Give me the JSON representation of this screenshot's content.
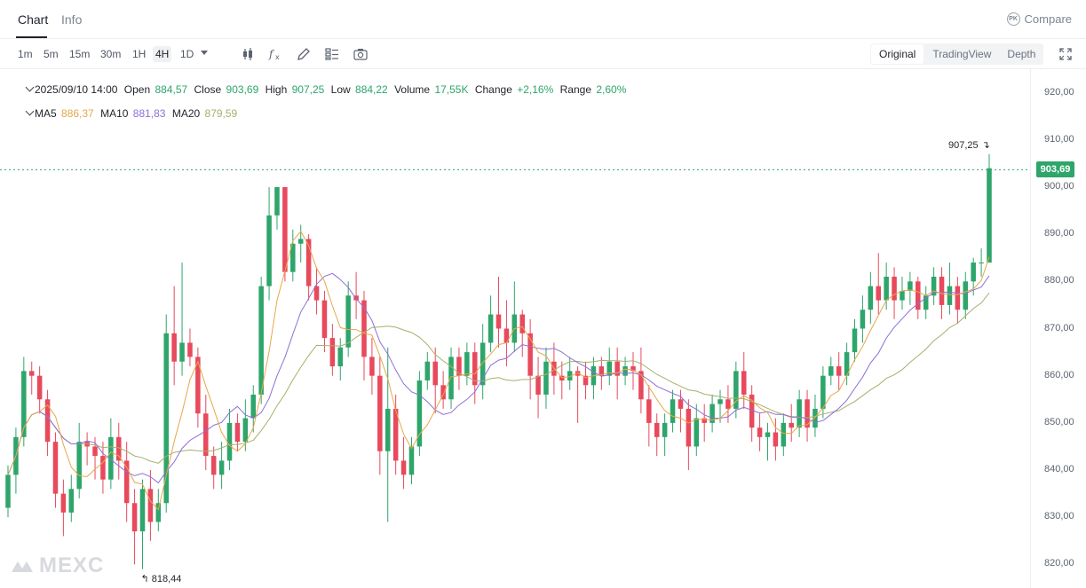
{
  "tabs": {
    "chart": "Chart",
    "info": "Info",
    "compare": "Compare",
    "compare_badge": "PK"
  },
  "intervals": [
    "1m",
    "5m",
    "15m",
    "30m",
    "1H",
    "4H",
    "1D"
  ],
  "active_interval": "4H",
  "tools": [
    "candlestick-type-icon",
    "indicators-fx-icon",
    "draw-pencil-icon",
    "layout-grid-icon",
    "screenshot-camera-icon"
  ],
  "view_modes": [
    "Original",
    "TradingView",
    "Depth"
  ],
  "active_view": "Original",
  "ohlc": {
    "date": "2025/09/10 14:00",
    "open_label": "Open",
    "open": "884,57",
    "close_label": "Close",
    "close": "903,69",
    "high_label": "High",
    "high": "907,25",
    "low_label": "Low",
    "low": "884,22",
    "volume_label": "Volume",
    "volume": "17,55K",
    "change_label": "Change",
    "change": "+2,16%",
    "range_label": "Range",
    "range": "2,60%"
  },
  "ma": {
    "ma5_label": "MA5",
    "ma5": "886,37",
    "ma10_label": "MA10",
    "ma10": "881,83",
    "ma20_label": "MA20",
    "ma20": "879,59"
  },
  "price_ticks": [
    "920,00",
    "910,00",
    "900,00",
    "890,00",
    "880,00",
    "870,00",
    "860,00",
    "850,00",
    "840,00",
    "830,00",
    "820,00"
  ],
  "last_price": "903,69",
  "high_marker": "907,25",
  "low_marker": "818,44",
  "watermark": "MEXC",
  "colors": {
    "up": "#2ea56b",
    "down": "#e8495c",
    "ma5": "#e7a74a",
    "ma10": "#8e6fd6",
    "ma20": "#a7b06a",
    "last_line": "#2ea56b"
  },
  "chart_data": {
    "type": "candlestick",
    "y_range": [
      815,
      925
    ],
    "y_ticks": [
      820,
      830,
      840,
      850,
      860,
      870,
      880,
      890,
      900,
      910,
      920
    ],
    "grid": false,
    "last_price": 903.69,
    "candles": [
      [
        832,
        839,
        830,
        841
      ],
      [
        839,
        847,
        835,
        849
      ],
      [
        847,
        861,
        845,
        864
      ],
      [
        861,
        860,
        856,
        863
      ],
      [
        860,
        855,
        852,
        862
      ],
      [
        855,
        846,
        843,
        857
      ],
      [
        846,
        835,
        832,
        848
      ],
      [
        835,
        831,
        826,
        838
      ],
      [
        831,
        836,
        829,
        839
      ],
      [
        836,
        846,
        834,
        850
      ],
      [
        846,
        845,
        841,
        848
      ],
      [
        845,
        843,
        838,
        847
      ],
      [
        843,
        838,
        835,
        846
      ],
      [
        838,
        847,
        836,
        851
      ],
      [
        847,
        842,
        838,
        850
      ],
      [
        842,
        833,
        829,
        846
      ],
      [
        833,
        827,
        820,
        836
      ],
      [
        827,
        836,
        819,
        838
      ],
      [
        836,
        829,
        825,
        840
      ],
      [
        829,
        833,
        827,
        836
      ],
      [
        833,
        869,
        831,
        873
      ],
      [
        869,
        863,
        858,
        879
      ],
      [
        863,
        867,
        860,
        884
      ],
      [
        867,
        864,
        862,
        870
      ],
      [
        864,
        852,
        849,
        866
      ],
      [
        852,
        843,
        840,
        856
      ],
      [
        843,
        839,
        836,
        845
      ],
      [
        839,
        842,
        836,
        846
      ],
      [
        842,
        850,
        840,
        853
      ],
      [
        850,
        846,
        844,
        852
      ],
      [
        846,
        851,
        844,
        855
      ],
      [
        851,
        856,
        848,
        858
      ],
      [
        856,
        879,
        854,
        881
      ],
      [
        879,
        894,
        876,
        900
      ],
      [
        894,
        900,
        891,
        900
      ],
      [
        900,
        882,
        880,
        900
      ],
      [
        882,
        888,
        880,
        891
      ],
      [
        888,
        889,
        884,
        892
      ],
      [
        889,
        879,
        876,
        890
      ],
      [
        879,
        876,
        873,
        883
      ],
      [
        876,
        868,
        865,
        878
      ],
      [
        868,
        862,
        860,
        871
      ],
      [
        862,
        866,
        859,
        868
      ],
      [
        866,
        877,
        864,
        880
      ],
      [
        877,
        876,
        872,
        882
      ],
      [
        876,
        864,
        859,
        878
      ],
      [
        864,
        860,
        856,
        868
      ],
      [
        860,
        844,
        839,
        864
      ],
      [
        844,
        853,
        829,
        866
      ],
      [
        853,
        842,
        839,
        856
      ],
      [
        842,
        839,
        836,
        847
      ],
      [
        839,
        845,
        837,
        847
      ],
      [
        845,
        859,
        843,
        861
      ],
      [
        859,
        863,
        857,
        865
      ],
      [
        863,
        858,
        852,
        866
      ],
      [
        858,
        855,
        853,
        861
      ],
      [
        855,
        864,
        853,
        866
      ],
      [
        864,
        860,
        857,
        866
      ],
      [
        860,
        865,
        858,
        867
      ],
      [
        865,
        858,
        854,
        867
      ],
      [
        858,
        867,
        855,
        871
      ],
      [
        867,
        873,
        865,
        877
      ],
      [
        873,
        870,
        866,
        881
      ],
      [
        870,
        867,
        862,
        876
      ],
      [
        867,
        873,
        865,
        880
      ],
      [
        873,
        869,
        864,
        874
      ],
      [
        869,
        860,
        855,
        872
      ],
      [
        860,
        856,
        851,
        864
      ],
      [
        856,
        863,
        853,
        866
      ],
      [
        863,
        860,
        856,
        867
      ],
      [
        860,
        859,
        855,
        863
      ],
      [
        859,
        861,
        857,
        864
      ],
      [
        861,
        860,
        850,
        862
      ],
      [
        860,
        858,
        855,
        863
      ],
      [
        858,
        862,
        855,
        864
      ],
      [
        862,
        860,
        857,
        864
      ],
      [
        860,
        863,
        858,
        866
      ],
      [
        863,
        860,
        855,
        866
      ],
      [
        860,
        862,
        858,
        864
      ],
      [
        862,
        861,
        857,
        865
      ],
      [
        861,
        855,
        852,
        866
      ],
      [
        855,
        850,
        845,
        858
      ],
      [
        850,
        847,
        843,
        852
      ],
      [
        847,
        850,
        843,
        852
      ],
      [
        850,
        855,
        848,
        857
      ],
      [
        855,
        853,
        848,
        857
      ],
      [
        853,
        845,
        840,
        855
      ],
      [
        845,
        851,
        843,
        854
      ],
      [
        851,
        850,
        846,
        854
      ],
      [
        850,
        854,
        848,
        856
      ],
      [
        854,
        855,
        850,
        857
      ],
      [
        855,
        853,
        850,
        858
      ],
      [
        853,
        861,
        851,
        863
      ],
      [
        861,
        856,
        853,
        865
      ],
      [
        856,
        849,
        846,
        858
      ],
      [
        849,
        847,
        844,
        852
      ],
      [
        847,
        848,
        842,
        850
      ],
      [
        848,
        845,
        842,
        851
      ],
      [
        845,
        850,
        843,
        852
      ],
      [
        850,
        849,
        846,
        854
      ],
      [
        849,
        855,
        847,
        857
      ],
      [
        855,
        849,
        846,
        857
      ],
      [
        849,
        853,
        847,
        856
      ],
      [
        853,
        860,
        851,
        862
      ],
      [
        860,
        862,
        858,
        864
      ],
      [
        862,
        860,
        857,
        865
      ],
      [
        860,
        865,
        858,
        867
      ],
      [
        865,
        870,
        863,
        872
      ],
      [
        870,
        874,
        867,
        877
      ],
      [
        874,
        879,
        871,
        882
      ],
      [
        879,
        876,
        873,
        886
      ],
      [
        876,
        881,
        874,
        884
      ],
      [
        881,
        876,
        872,
        883
      ],
      [
        876,
        878,
        874,
        881
      ],
      [
        878,
        880,
        875,
        882
      ],
      [
        880,
        874,
        872,
        881
      ],
      [
        874,
        877,
        872,
        879
      ],
      [
        877,
        881,
        875,
        883
      ],
      [
        881,
        875,
        872,
        883
      ],
      [
        875,
        879,
        873,
        884
      ],
      [
        879,
        874,
        871,
        881
      ],
      [
        874,
        880,
        872,
        882
      ],
      [
        880,
        884,
        877,
        885
      ],
      [
        884,
        884,
        881,
        887
      ],
      [
        884,
        904,
        884,
        907
      ]
    ]
  }
}
